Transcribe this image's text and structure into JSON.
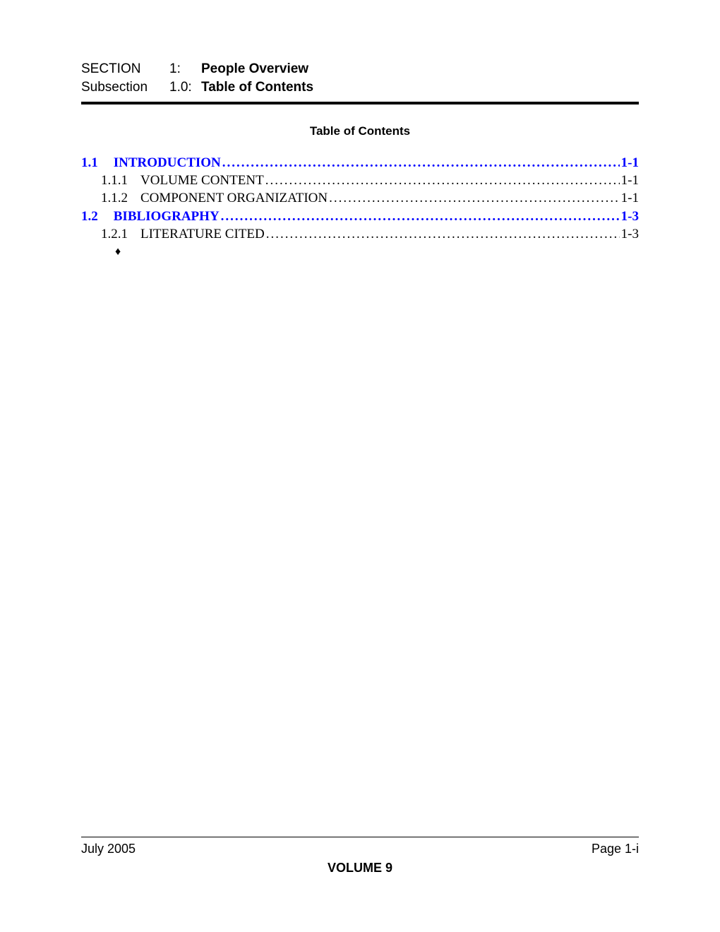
{
  "header": {
    "section_label": "SECTION",
    "section_num": "1:",
    "section_title": "People Overview",
    "subsection_label": "Subsection",
    "subsection_num": "1.0:",
    "subsection_title": "Table of Contents"
  },
  "toc": {
    "title": "Table of Contents",
    "entries": [
      {
        "level": 1,
        "num": "1.1",
        "text": "INTRODUCTION",
        "page": "1-1",
        "link": true
      },
      {
        "level": 2,
        "num": "1.1.1",
        "text": "VOLUME CONTENT",
        "page": "1-1",
        "link": false
      },
      {
        "level": 2,
        "num": "1.1.2",
        "text": "COMPONENT ORGANIZATION",
        "page": "1-1",
        "link": false
      },
      {
        "level": 1,
        "num": "1.2",
        "text": "BIBLIOGRAPHY",
        "page": "1-3",
        "link": true
      },
      {
        "level": 2,
        "num": "1.2.1",
        "text": "LITERATURE CITED",
        "page": "1-3",
        "link": false
      }
    ],
    "end_marker": "♦"
  },
  "footer": {
    "date": "July 2005",
    "page": "Page 1-i",
    "volume": "VOLUME 9"
  },
  "colors": {
    "link": "#0000ff",
    "text": "#000000",
    "background": "#ffffff"
  }
}
